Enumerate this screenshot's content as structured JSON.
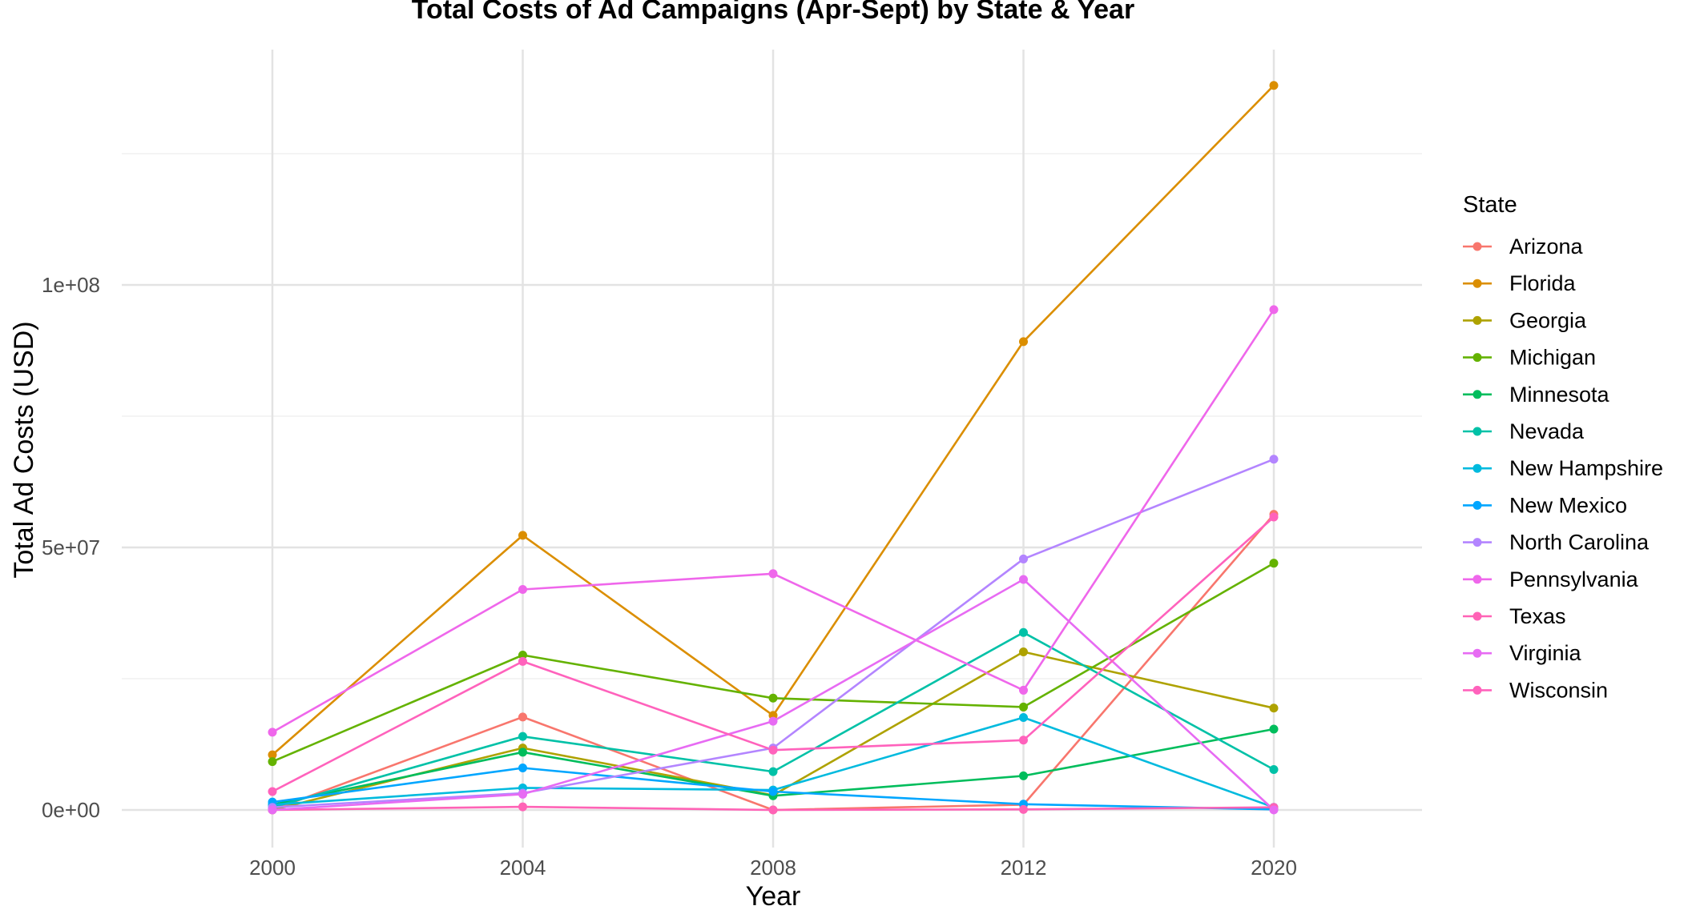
{
  "chart_data": {
    "type": "line",
    "title": "Total Costs of Ad Campaigns (Apr-Sept) by State & Year",
    "xlabel": "Year",
    "ylabel": "Total Ad Costs (USD)",
    "categories": [
      "2000",
      "2004",
      "2008",
      "2012",
      "2020"
    ],
    "ylim": [
      -7000000,
      141000000
    ],
    "y_ticks": [
      {
        "value": 0,
        "label": "0e+00"
      },
      {
        "value": 50000000,
        "label": "5e+07"
      },
      {
        "value": 100000000,
        "label": "1e+08"
      }
    ],
    "y_minor_ticks": [
      25000000,
      75000000,
      125000000
    ],
    "grid": true,
    "legend_title": "State",
    "legend_position": "right",
    "series": [
      {
        "name": "Arizona",
        "color": "#F8766D",
        "values": [
          0,
          17700000,
          0,
          1000000,
          56300000
        ]
      },
      {
        "name": "Florida",
        "color": "#DB8E00",
        "values": [
          10500000,
          52300000,
          18000000,
          89200000,
          138000000
        ]
      },
      {
        "name": "Georgia",
        "color": "#AEA200",
        "values": [
          0,
          11800000,
          2800000,
          30100000,
          19400000
        ]
      },
      {
        "name": "Michigan",
        "color": "#64B200",
        "values": [
          9200000,
          29500000,
          21300000,
          19600000,
          47000000
        ]
      },
      {
        "name": "Minnesota",
        "color": "#00BD5C",
        "values": [
          1000000,
          11000000,
          2700000,
          6500000,
          15400000
        ]
      },
      {
        "name": "Nevada",
        "color": "#00C1A7",
        "values": [
          500000,
          14000000,
          7300000,
          33800000,
          7700000
        ]
      },
      {
        "name": "New Hampshire",
        "color": "#00BADE",
        "values": [
          1000000,
          4200000,
          3800000,
          17600000,
          500000
        ]
      },
      {
        "name": "New Mexico",
        "color": "#00A6FF",
        "values": [
          1500000,
          8000000,
          3500000,
          1100000,
          100000
        ]
      },
      {
        "name": "North Carolina",
        "color": "#B385FF",
        "values": [
          500000,
          3200000,
          11800000,
          47800000,
          66800000
        ]
      },
      {
        "name": "Pennsylvania",
        "color": "#EF67EB",
        "values": [
          14800000,
          42000000,
          45000000,
          22800000,
          95300000
        ]
      },
      {
        "name": "Texas",
        "color": "#FF63B6",
        "values": [
          0,
          600000,
          0,
          100000,
          500000
        ]
      },
      {
        "name": "Virginia",
        "color": "#E76BF3",
        "values": [
          0,
          3000000,
          16900000,
          43900000,
          0
        ]
      },
      {
        "name": "Wisconsin",
        "color": "#FF62BC",
        "values": [
          3500000,
          28300000,
          11400000,
          13300000,
          55800000
        ]
      }
    ]
  }
}
